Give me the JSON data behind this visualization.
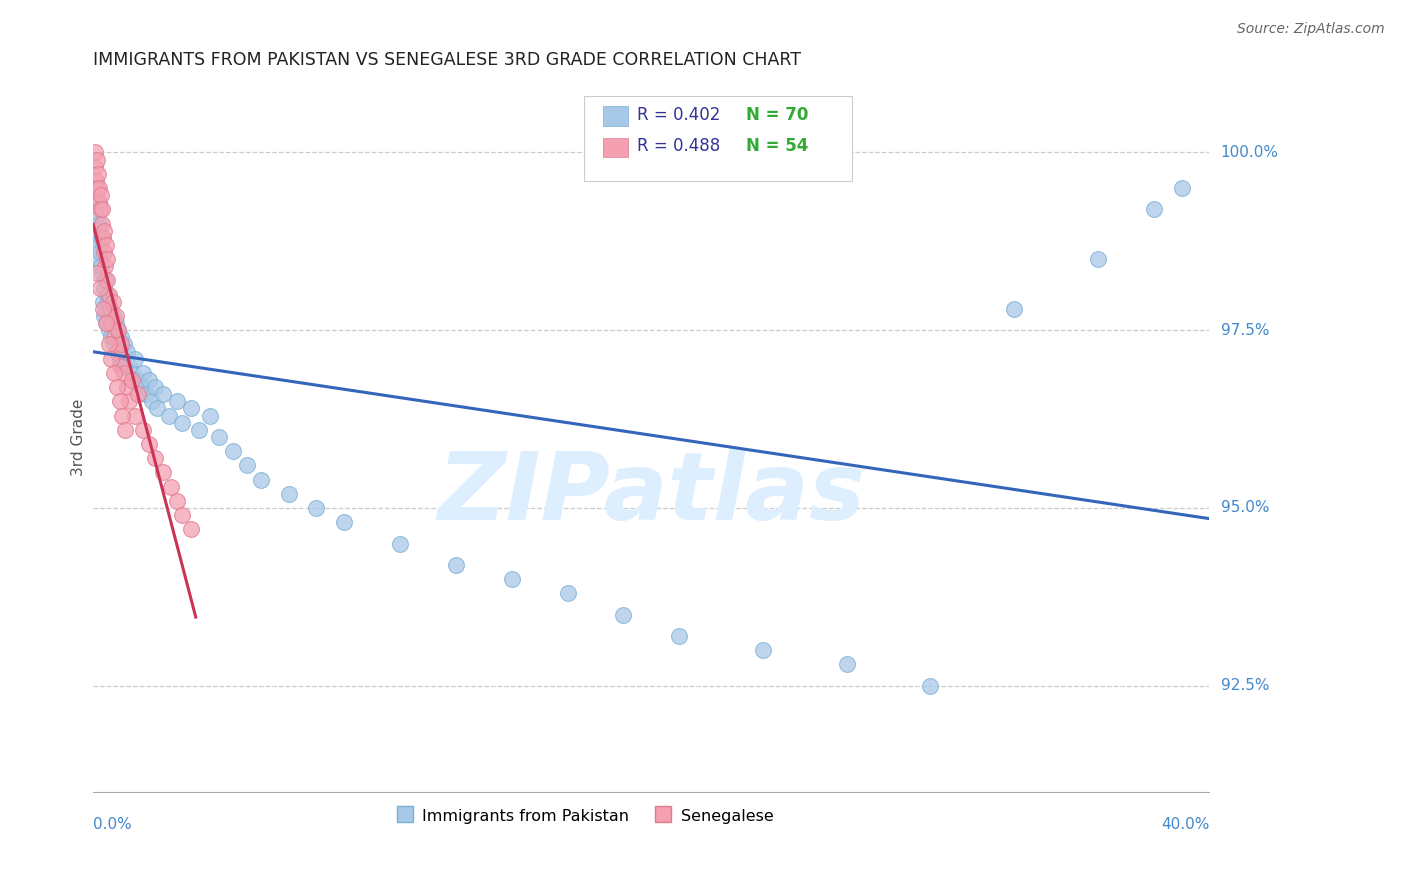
{
  "title": "IMMIGRANTS FROM PAKISTAN VS SENEGALESE 3RD GRADE CORRELATION CHART",
  "source": "Source: ZipAtlas.com",
  "ylabel": "3rd Grade",
  "xlim": [
    0.0,
    40.0
  ],
  "ylim": [
    91.0,
    101.0
  ],
  "ytick_labels": [
    "92.5%",
    "95.0%",
    "97.5%",
    "100.0%"
  ],
  "ytick_values": [
    92.5,
    95.0,
    97.5,
    100.0
  ],
  "xtick_labels": [
    "0.0%",
    "40.0%"
  ],
  "xtick_positions": [
    0.0,
    40.0
  ],
  "legend_r_blue": "R = 0.402",
  "legend_n_blue": "N = 70",
  "legend_r_pink": "R = 0.488",
  "legend_n_pink": "N = 54",
  "blue_color": "#a8c8e8",
  "blue_edge_color": "#7aafd4",
  "pink_color": "#f4a0b0",
  "pink_edge_color": "#e07890",
  "blue_line_color": "#3366bb",
  "pink_line_color": "#cc3355",
  "grid_color": "#cccccc",
  "watermark_text": "ZIPatlas",
  "watermark_color": "#ddeeff",
  "title_color": "#222222",
  "source_color": "#666666",
  "axis_label_color": "#4488cc",
  "ylabel_color": "#555555",
  "legend_blue_label": "R = 0.402   N = 70",
  "legend_pink_label": "R = 0.488   N = 54",
  "bottom_label_blue": "Immigrants from Pakistan",
  "bottom_label_pink": "Senegalese",
  "pak_x": [
    0.05,
    0.1,
    0.12,
    0.15,
    0.18,
    0.2,
    0.22,
    0.25,
    0.28,
    0.3,
    0.32,
    0.35,
    0.38,
    0.4,
    0.42,
    0.45,
    0.48,
    0.5,
    0.52,
    0.55,
    0.6,
    0.65,
    0.7,
    0.75,
    0.8,
    0.85,
    0.9,
    0.95,
    1.0,
    1.05,
    1.1,
    1.2,
    1.3,
    1.4,
    1.5,
    1.6,
    1.7,
    1.8,
    1.9,
    2.0,
    2.1,
    2.2,
    2.3,
    2.5,
    2.7,
    3.0,
    3.2,
    3.5,
    3.8,
    4.2,
    4.5,
    5.0,
    5.5,
    6.0,
    7.0,
    8.0,
    9.0,
    11.0,
    13.0,
    15.0,
    17.0,
    19.0,
    21.0,
    24.0,
    27.0,
    30.0,
    33.0,
    36.0,
    38.0,
    39.0
  ],
  "pak_y": [
    98.8,
    99.1,
    98.5,
    99.3,
    98.9,
    98.7,
    99.0,
    98.6,
    98.4,
    98.8,
    98.3,
    97.9,
    98.1,
    97.7,
    98.2,
    97.8,
    98.0,
    97.6,
    97.9,
    97.5,
    97.8,
    97.4,
    97.7,
    97.3,
    97.6,
    97.2,
    97.5,
    97.1,
    97.4,
    97.0,
    97.3,
    97.2,
    97.0,
    96.9,
    97.1,
    96.8,
    96.7,
    96.9,
    96.6,
    96.8,
    96.5,
    96.7,
    96.4,
    96.6,
    96.3,
    96.5,
    96.2,
    96.4,
    96.1,
    96.3,
    96.0,
    95.8,
    95.6,
    95.4,
    95.2,
    95.0,
    94.8,
    94.5,
    94.2,
    94.0,
    93.8,
    93.5,
    93.2,
    93.0,
    92.8,
    92.5,
    97.8,
    98.5,
    99.2,
    99.5
  ],
  "sen_x": [
    0.05,
    0.08,
    0.1,
    0.12,
    0.15,
    0.18,
    0.2,
    0.22,
    0.25,
    0.28,
    0.3,
    0.32,
    0.35,
    0.38,
    0.4,
    0.42,
    0.45,
    0.48,
    0.5,
    0.55,
    0.6,
    0.65,
    0.7,
    0.75,
    0.8,
    0.85,
    0.9,
    0.95,
    1.0,
    1.1,
    1.2,
    1.3,
    1.4,
    1.5,
    1.6,
    1.8,
    2.0,
    2.2,
    2.5,
    2.8,
    3.0,
    3.2,
    3.5,
    0.15,
    0.25,
    0.35,
    0.45,
    0.55,
    0.65,
    0.75,
    0.85,
    0.95,
    1.05,
    1.15
  ],
  "sen_y": [
    99.8,
    100.0,
    99.6,
    99.9,
    99.5,
    99.7,
    99.3,
    99.5,
    99.2,
    99.4,
    99.0,
    99.2,
    98.8,
    98.6,
    98.9,
    98.4,
    98.7,
    98.2,
    98.5,
    98.0,
    97.8,
    97.6,
    97.9,
    97.4,
    97.7,
    97.2,
    97.5,
    97.0,
    97.3,
    96.9,
    96.7,
    96.5,
    96.8,
    96.3,
    96.6,
    96.1,
    95.9,
    95.7,
    95.5,
    95.3,
    95.1,
    94.9,
    94.7,
    98.3,
    98.1,
    97.8,
    97.6,
    97.3,
    97.1,
    96.9,
    96.7,
    96.5,
    96.3,
    96.1
  ]
}
